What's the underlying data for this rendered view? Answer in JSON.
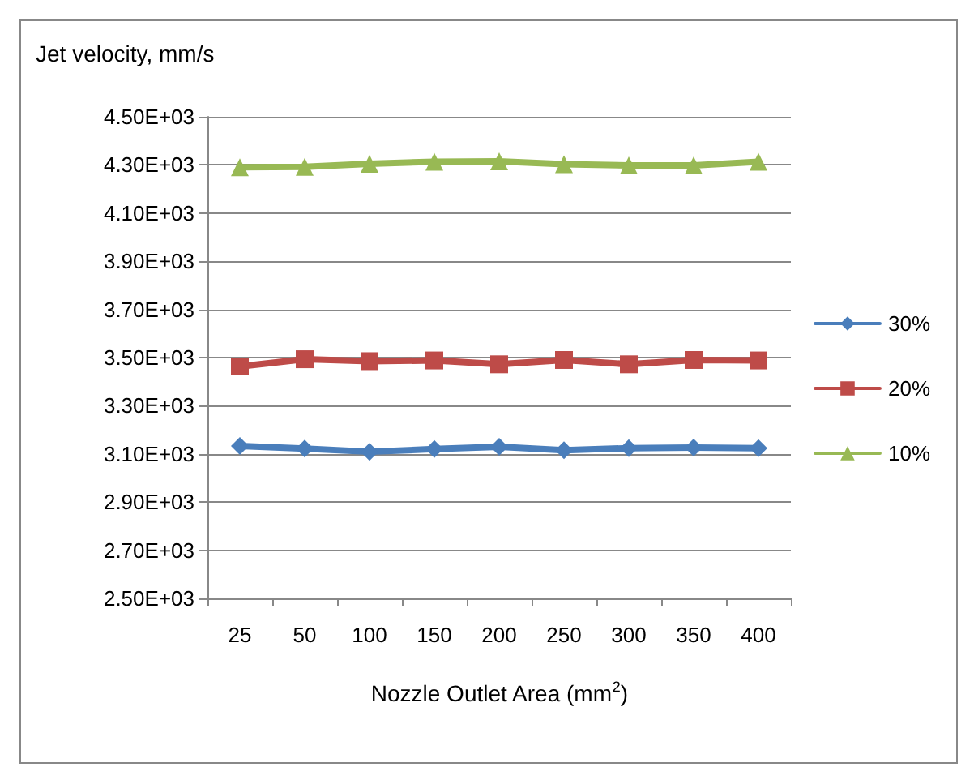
{
  "chart_data": {
    "type": "line",
    "ylabel": "Jet velocity, mm/s",
    "xlabel": "Nozzle Outlet Area (mm$^{2}$)",
    "categories": [
      "25",
      "50",
      "100",
      "150",
      "200",
      "250",
      "300",
      "350",
      "400"
    ],
    "series": [
      {
        "name": "30%",
        "color": "#4a7ebb",
        "marker": "diamond",
        "values": [
          3133,
          3122,
          3109,
          3120,
          3130,
          3115,
          3124,
          3126,
          3124
        ]
      },
      {
        "name": "20%",
        "color": "#be4b48",
        "marker": "square",
        "values": [
          3463,
          3493,
          3485,
          3488,
          3472,
          3490,
          3472,
          3490,
          3488
        ]
      },
      {
        "name": "10%",
        "color": "#98b954",
        "marker": "triangle",
        "values": [
          4290,
          4292,
          4305,
          4313,
          4315,
          4303,
          4298,
          4298,
          4313
        ]
      }
    ],
    "ylim": [
      2500,
      4500
    ],
    "yticks": [
      {
        "value": 2500,
        "label": "2.50E+03"
      },
      {
        "value": 2700,
        "label": "2.70E+03"
      },
      {
        "value": 2900,
        "label": "2.90E+03"
      },
      {
        "value": 3100,
        "label": "3.10E+03"
      },
      {
        "value": 3300,
        "label": "3.30E+03"
      },
      {
        "value": 3500,
        "label": "3.50E+03"
      },
      {
        "value": 3700,
        "label": "3.70E+03"
      },
      {
        "value": 3900,
        "label": "3.90E+03"
      },
      {
        "value": 4100,
        "label": "4.10E+03"
      },
      {
        "value": 4300,
        "label": "4.30E+03"
      },
      {
        "value": 4500,
        "label": "4.50E+03"
      }
    ],
    "grid": "y",
    "legend": "right",
    "line_style": "solid"
  }
}
